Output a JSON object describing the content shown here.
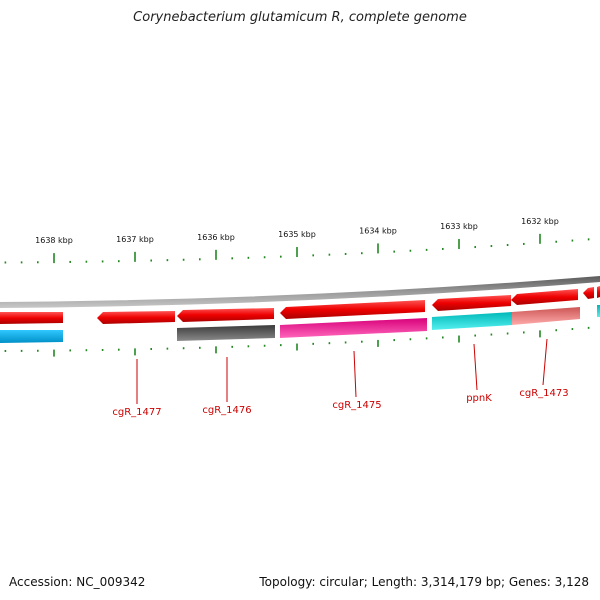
{
  "title": "Corynebacterium glutamicum R, complete genome",
  "footer": {
    "accession": "Accession: NC_009342",
    "summary": "Topology: circular; Length: 3,314,179 bp; Genes: 3,128"
  },
  "colors": {
    "forward_strand": "#ee0000",
    "backbone": "#7a7a7a",
    "tick": "#228822",
    "label": "#cc0000"
  },
  "chart_data": {
    "type": "genome_map",
    "scale_labels": [
      "1638 kbp",
      "1637 kbp",
      "1636 kbp",
      "1635 kbp",
      "1634 kbp",
      "1633 kbp",
      "1632 kbp"
    ],
    "strand_features": [
      {
        "strand": "outer",
        "color": "#ee0000",
        "direction": "left"
      },
      {
        "strand": "inner",
        "color": "#00a8d8"
      },
      {
        "strand": "inner",
        "color": "#555555"
      },
      {
        "strand": "inner",
        "color": "#ee1199"
      },
      {
        "strand": "inner",
        "color": "#00c8c8"
      },
      {
        "strand": "inner",
        "color": "#ee7777"
      }
    ],
    "gene_labels": [
      "cgR_1477",
      "cgR_1476",
      "cgR_1475",
      "ppnK",
      "cgR_1473"
    ]
  }
}
